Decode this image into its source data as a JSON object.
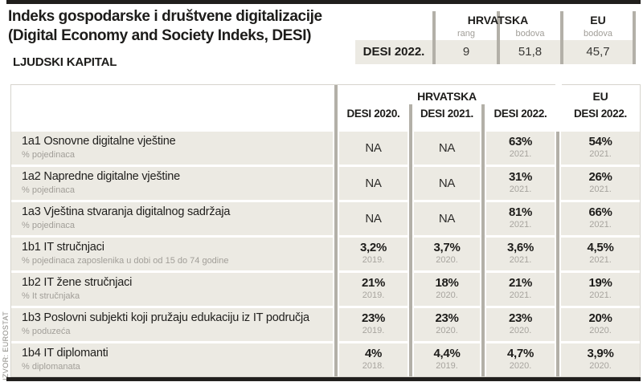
{
  "header": {
    "title_line1": "Indeks gospodarske i društvene digitalizacije",
    "title_line2": "(Digital Economy and Society Indeks, DESI)",
    "section": "LJUDSKI KAPITAL"
  },
  "source": "IZVOR: EUROSTAT",
  "summary_table": {
    "hrvatska_label": "HRVATSKA",
    "eu_label": "EU",
    "sub_rang": "rang",
    "sub_bodova": "bodova",
    "sub_bodova_eu": "bodova",
    "row_label": "DESI 2022.",
    "rang_value": "9",
    "bodova_value": "51,8",
    "eu_bodova_value": "45,7"
  },
  "main_table": {
    "hrvatska_label": "HRVATSKA",
    "eu_label": "EU",
    "col_headers": [
      "DESI 2020.",
      "DESI 2021.",
      "DESI 2022."
    ],
    "eu_col_header": "DESI 2022.",
    "rows": [
      {
        "label": "1a1 Osnovne digitalne vještine",
        "sublabel": "% pojedinaca",
        "cells": [
          {
            "value": "NA",
            "year": ""
          },
          {
            "value": "NA",
            "year": ""
          },
          {
            "value": "63%",
            "year": "2021."
          },
          {
            "value": "54%",
            "year": "2021."
          }
        ]
      },
      {
        "label": "1a2 Napredne digitalne vještine",
        "sublabel": "% pojedinaca",
        "cells": [
          {
            "value": "NA",
            "year": ""
          },
          {
            "value": "NA",
            "year": ""
          },
          {
            "value": "31%",
            "year": "2021."
          },
          {
            "value": "26%",
            "year": "2021."
          }
        ]
      },
      {
        "label": "1a3 Vještina stvaranja digitalnog sadržaja",
        "sublabel": "% pojedinaca",
        "cells": [
          {
            "value": "NA",
            "year": ""
          },
          {
            "value": "NA",
            "year": ""
          },
          {
            "value": "81%",
            "year": "2021."
          },
          {
            "value": "66%",
            "year": "2021."
          }
        ]
      },
      {
        "label": "1b1 IT stručnjaci",
        "sublabel": "% pojedinaca zaposlenika u dobi od 15 do 74 godine",
        "cells": [
          {
            "value": "3,2%",
            "year": "2019."
          },
          {
            "value": "3,7%",
            "year": "2020."
          },
          {
            "value": "3,6%",
            "year": "2021."
          },
          {
            "value": "4,5%",
            "year": "2021."
          }
        ]
      },
      {
        "label": "1b2 IT žene stručnjaci",
        "sublabel": "% It stručnjaka",
        "cells": [
          {
            "value": "21%",
            "year": "2019."
          },
          {
            "value": "18%",
            "year": "2020."
          },
          {
            "value": "21%",
            "year": "2021."
          },
          {
            "value": "19%",
            "year": "2021."
          }
        ]
      },
      {
        "label": "1b3 Poslovni subjekti koji pružaju edukaciju iz IT područja",
        "sublabel": "% poduzeća",
        "cells": [
          {
            "value": "23%",
            "year": "2019."
          },
          {
            "value": "23%",
            "year": "2020."
          },
          {
            "value": "23%",
            "year": "2020."
          },
          {
            "value": "20%",
            "year": "2020."
          }
        ]
      },
      {
        "label": "1b4 IT diplomanti",
        "sublabel": "% diplomanata",
        "cells": [
          {
            "value": "4%",
            "year": "2018."
          },
          {
            "value": "4,4%",
            "year": "2019."
          },
          {
            "value": "4,7%",
            "year": "2020."
          },
          {
            "value": "3,9%",
            "year": "2020."
          }
        ]
      }
    ]
  },
  "chart_data": {
    "type": "table",
    "title": "Indeks gospodarske i društvene digitalizacije (Digital Economy and Society Indeks, DESI)",
    "section": "LJUDSKI KAPITAL",
    "summary": {
      "row": "DESI 2022.",
      "hrvatska_rang": 9,
      "hrvatska_bodova": 51.8,
      "eu_bodova": 45.7
    },
    "columns": [
      "HRVATSKA DESI 2020.",
      "HRVATSKA DESI 2021.",
      "HRVATSKA DESI 2022.",
      "EU DESI 2022."
    ],
    "rows": [
      {
        "indicator": "1a1 Osnovne digitalne vještine",
        "unit": "% pojedinaca",
        "values": [
          "NA",
          "NA",
          "63% (2021.)",
          "54% (2021.)"
        ]
      },
      {
        "indicator": "1a2 Napredne digitalne vještine",
        "unit": "% pojedinaca",
        "values": [
          "NA",
          "NA",
          "31% (2021.)",
          "26% (2021.)"
        ]
      },
      {
        "indicator": "1a3 Vještina stvaranja digitalnog sadržaja",
        "unit": "% pojedinaca",
        "values": [
          "NA",
          "NA",
          "81% (2021.)",
          "66% (2021.)"
        ]
      },
      {
        "indicator": "1b1 IT stručnjaci",
        "unit": "% pojedinaca zaposlenika u dobi od 15 do 74 godine",
        "values": [
          "3,2% (2019.)",
          "3,7% (2020.)",
          "3,6% (2021.)",
          "4,5% (2021.)"
        ]
      },
      {
        "indicator": "1b2 IT žene stručnjaci",
        "unit": "% It stručnjaka",
        "values": [
          "21% (2019.)",
          "18% (2020.)",
          "21% (2021.)",
          "19% (2021.)"
        ]
      },
      {
        "indicator": "1b3 Poslovni subjekti koji pružaju edukaciju iz IT područja",
        "unit": "% poduzeća",
        "values": [
          "23% (2019.)",
          "23% (2020.)",
          "23% (2020.)",
          "20% (2020.)"
        ]
      },
      {
        "indicator": "1b4 IT diplomanti",
        "unit": "% diplomanata",
        "values": [
          "4% (2018.)",
          "4,4% (2019.)",
          "4,7% (2020.)",
          "3,9% (2020.)"
        ]
      }
    ],
    "source": "IZVOR: EUROSTAT"
  },
  "colors": {
    "row_background": "#eceae3",
    "separator_bar": "#b3b0a8",
    "black_rule": "#211f1d",
    "muted_text": "#a19e98",
    "table_border": "#d6d4cd"
  }
}
